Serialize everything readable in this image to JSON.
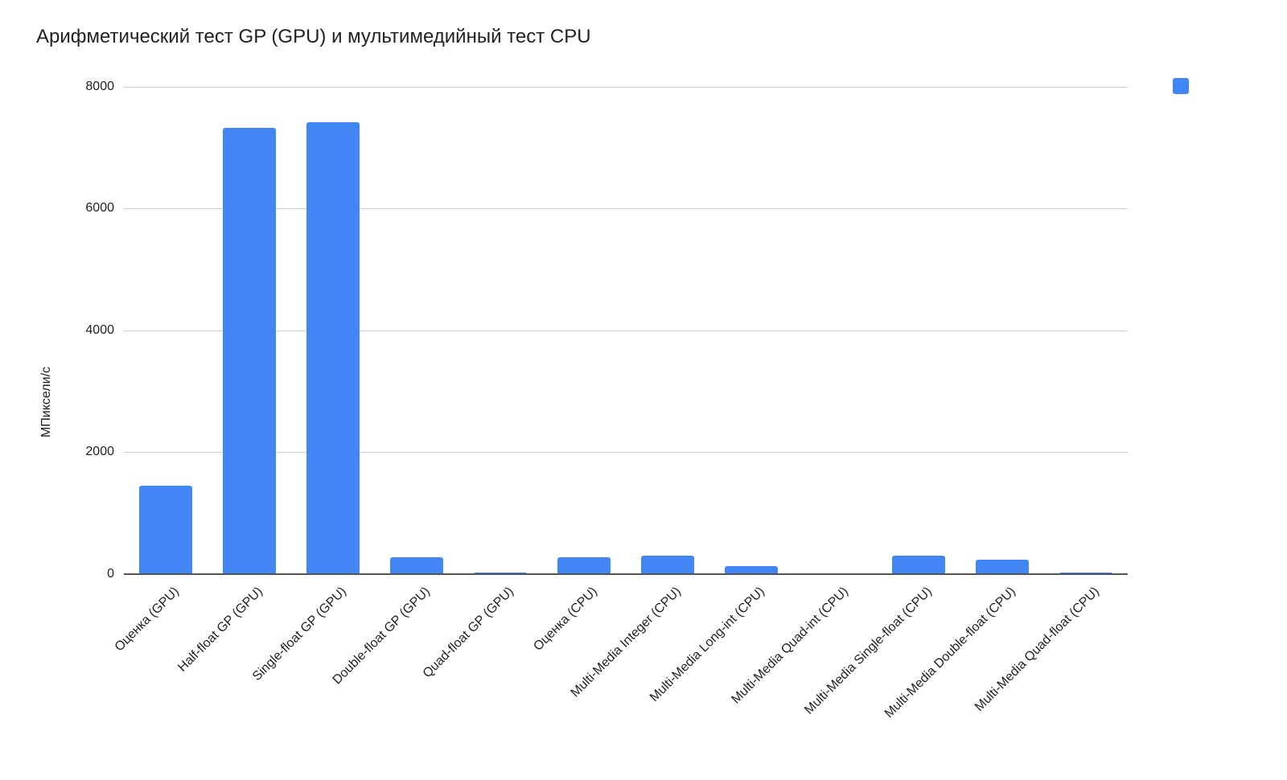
{
  "chart_data": {
    "type": "bar",
    "title": "Арифметический тест GP (GPU) и мультимедийный тест CPU",
    "xlabel": "",
    "ylabel": "МПиксели/с",
    "ylim": [
      0,
      8000
    ],
    "yticks": [
      0,
      2000,
      4000,
      6000,
      8000
    ],
    "grid": true,
    "legend": {
      "position": "right",
      "entries": [
        ""
      ]
    },
    "color": "#4285f4",
    "categories": [
      "Оценка (GPU)",
      "Half-float GP (GPU)",
      "Single-float GP (GPU)",
      "Double-float GP (GPU)",
      "Quad-float GP (GPU)",
      "Оценка (CPU)",
      "Multi-Media Integer (CPU)",
      "Multi-Media Long-int (CPU)",
      "Multi-Media Quad-int (CPU)",
      "Multi-Media Single-float (CPU)",
      "Multi-Media Double-float (CPU)",
      "Multi-Media Quad-float (CPU)"
    ],
    "values": [
      1445,
      7330,
      7420,
      275,
      5,
      275,
      293,
      121,
      0,
      293,
      231,
      5
    ]
  },
  "header": {
    "title": "Арифметический тест GP (GPU) и мультимедийный тест CPU"
  },
  "axis": {
    "y_title": "МПиксели/с",
    "y_ticks": [
      "0",
      "2000",
      "4000",
      "6000",
      "8000"
    ]
  }
}
